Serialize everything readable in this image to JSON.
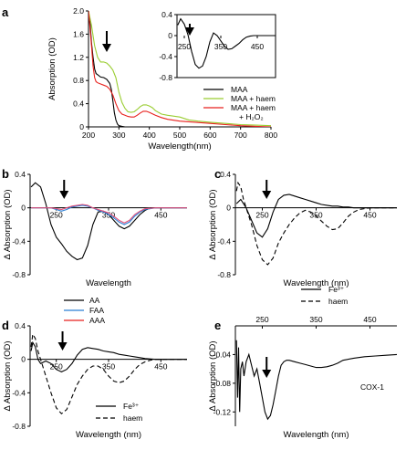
{
  "colors": {
    "black": "#000000",
    "green": "#9acd32",
    "red": "#e8211d",
    "blue": "#2a7fd4",
    "pink": "#e0507a"
  },
  "chart_data": [
    {
      "id": "a",
      "panel_label": "a",
      "type": "line",
      "xlabel": "Wavelength(nm)",
      "ylabel": "Absorption (OD)",
      "xlim": [
        200,
        800
      ],
      "ylim": [
        0,
        2.0
      ],
      "xticks": [
        "200",
        "300",
        "400",
        "500",
        "600",
        "700",
        "800"
      ],
      "yticks": [
        "0",
        "0.4",
        "0.8",
        "1.2",
        "1.6",
        "2.0"
      ],
      "arrow_x": 260,
      "legend": [
        "MAA",
        "MAA + haem",
        "MAA + haem",
        "+ H₂O₂"
      ],
      "series": [
        {
          "name": "MAA",
          "color": "#000000",
          "dash": false,
          "x": [
            200,
            205,
            210,
            215,
            220,
            225,
            230,
            240,
            250,
            260,
            270,
            275,
            280,
            285,
            290,
            295,
            300,
            310,
            320,
            400,
            800
          ],
          "y": [
            2.0,
            1.8,
            1.45,
            1.2,
            1.0,
            0.92,
            0.9,
            0.86,
            0.85,
            0.82,
            0.75,
            0.65,
            0.45,
            0.25,
            0.12,
            0.05,
            0.02,
            0.01,
            0.0,
            0.0,
            0.0
          ]
        },
        {
          "name": "MAA + haem",
          "color": "#9acd32",
          "dash": false,
          "x": [
            200,
            210,
            220,
            230,
            240,
            250,
            260,
            270,
            280,
            290,
            300,
            310,
            320,
            330,
            340,
            350,
            360,
            370,
            380,
            390,
            400,
            410,
            420,
            440,
            460,
            500,
            530,
            560,
            600,
            650,
            700,
            750,
            800
          ],
          "y": [
            2.0,
            1.75,
            1.4,
            1.2,
            1.12,
            1.12,
            1.1,
            1.05,
            0.98,
            0.85,
            0.6,
            0.42,
            0.32,
            0.26,
            0.25,
            0.26,
            0.3,
            0.35,
            0.38,
            0.38,
            0.36,
            0.33,
            0.28,
            0.22,
            0.2,
            0.17,
            0.12,
            0.1,
            0.08,
            0.06,
            0.04,
            0.03,
            0.02
          ]
        },
        {
          "name": "MAA + haem + H₂O₂",
          "color": "#e8211d",
          "dash": false,
          "x": [
            200,
            205,
            210,
            215,
            220,
            225,
            230,
            240,
            250,
            260,
            270,
            280,
            290,
            300,
            310,
            320,
            330,
            340,
            350,
            360,
            370,
            380,
            390,
            400,
            420,
            440,
            460,
            500,
            550,
            600,
            650,
            700,
            750,
            800
          ],
          "y": [
            2.0,
            1.7,
            1.4,
            1.05,
            0.85,
            0.78,
            0.76,
            0.74,
            0.72,
            0.7,
            0.65,
            0.55,
            0.4,
            0.28,
            0.22,
            0.2,
            0.18,
            0.17,
            0.17,
            0.2,
            0.24,
            0.27,
            0.27,
            0.25,
            0.2,
            0.16,
            0.13,
            0.1,
            0.08,
            0.06,
            0.04,
            0.02,
            0.01,
            0.0
          ]
        }
      ]
    },
    {
      "id": "a-inset",
      "type": "line",
      "xlim": [
        230,
        500
      ],
      "ylim": [
        -0.8,
        0.4
      ],
      "xticks": [
        "250",
        "350",
        "450"
      ],
      "yticks": [
        "0.4",
        "0",
        "-0.4",
        "-0.8"
      ],
      "arrow_x": 265,
      "series": [
        {
          "name": "",
          "color": "#000000",
          "dash": false,
          "x": [
            232,
            240,
            250,
            260,
            270,
            280,
            290,
            300,
            310,
            320,
            330,
            340,
            350,
            360,
            370,
            380,
            390,
            400,
            410,
            420,
            430,
            440,
            450,
            460,
            470,
            480,
            490,
            500
          ],
          "y": [
            0.2,
            0.32,
            0.22,
            0.02,
            -0.3,
            -0.55,
            -0.62,
            -0.58,
            -0.4,
            -0.12,
            0.05,
            0.0,
            -0.1,
            -0.2,
            -0.26,
            -0.25,
            -0.2,
            -0.15,
            -0.08,
            -0.03,
            -0.01,
            0.0,
            0.0,
            0.0,
            0.0,
            0.0,
            0.0,
            0.0
          ]
        }
      ]
    },
    {
      "id": "b",
      "panel_label": "b",
      "type": "line",
      "xlabel": "Wavelength",
      "ylabel": "Δ Absorption (OD)",
      "xlim": [
        200,
        500
      ],
      "ylim": [
        -0.8,
        0.4
      ],
      "xticks": [
        "250",
        "350",
        "450"
      ],
      "yticks": [
        "0.4",
        "0",
        "-0.4",
        "-0.8"
      ],
      "arrow_x": 265,
      "legend": [
        "AA",
        "FAA",
        "AAA"
      ],
      "series": [
        {
          "name": "AA",
          "color": "#000000",
          "dash": false,
          "x": [
            202,
            210,
            220,
            230,
            240,
            250,
            260,
            270,
            280,
            290,
            300,
            310,
            320,
            330,
            340,
            350,
            360,
            370,
            380,
            390,
            400,
            410,
            420,
            430,
            440,
            450,
            460,
            470,
            480,
            490,
            500
          ],
          "y": [
            0.25,
            0.3,
            0.25,
            0.05,
            -0.2,
            -0.35,
            -0.43,
            -0.52,
            -0.58,
            -0.62,
            -0.6,
            -0.45,
            -0.2,
            -0.05,
            -0.04,
            -0.08,
            -0.15,
            -0.22,
            -0.25,
            -0.22,
            -0.15,
            -0.08,
            -0.03,
            0.0,
            0.0,
            0.0,
            0.0,
            0.0,
            0.0,
            0.0,
            0.0
          ]
        },
        {
          "name": "FAA",
          "color": "#2a7fd4",
          "dash": false,
          "x": [
            202,
            220,
            240,
            250,
            260,
            270,
            280,
            290,
            300,
            310,
            320,
            330,
            340,
            350,
            360,
            370,
            380,
            390,
            400,
            410,
            420,
            440,
            460,
            480,
            500
          ],
          "y": [
            0.0,
            0.0,
            0.0,
            -0.02,
            -0.04,
            -0.02,
            0.01,
            0.02,
            0.03,
            0.02,
            0.0,
            -0.03,
            -0.05,
            -0.08,
            -0.12,
            -0.17,
            -0.2,
            -0.17,
            -0.1,
            -0.05,
            -0.02,
            0.0,
            0.0,
            0.0,
            0.0
          ]
        },
        {
          "name": "AAA",
          "color": "#e0507a",
          "dash": false,
          "x": [
            202,
            220,
            240,
            250,
            260,
            270,
            280,
            290,
            300,
            310,
            320,
            330,
            340,
            350,
            360,
            370,
            380,
            390,
            400,
            410,
            420,
            440,
            460,
            480,
            500
          ],
          "y": [
            0.0,
            0.0,
            0.0,
            -0.01,
            -0.02,
            0.0,
            0.02,
            0.03,
            0.04,
            0.03,
            0.0,
            -0.02,
            -0.04,
            -0.06,
            -0.1,
            -0.15,
            -0.18,
            -0.15,
            -0.08,
            -0.04,
            -0.01,
            0.0,
            0.0,
            0.0,
            0.0
          ]
        }
      ]
    },
    {
      "id": "c",
      "panel_label": "c",
      "type": "line",
      "xlabel": "Wavelength (nm)",
      "ylabel": "Δ Absorption (OD)",
      "xlim": [
        200,
        500
      ],
      "ylim": [
        -0.8,
        0.4
      ],
      "xticks": [
        "250",
        "350",
        "450"
      ],
      "yticks": [
        "0.4",
        "0",
        "-0.4",
        "-0.8"
      ],
      "arrow_x": 258,
      "legend": [
        "Fe³⁺",
        "haem"
      ],
      "series": [
        {
          "name": "Fe³⁺",
          "color": "#000000",
          "dash": false,
          "x": [
            202,
            210,
            220,
            230,
            240,
            250,
            260,
            270,
            280,
            290,
            300,
            310,
            320,
            330,
            340,
            350,
            360,
            370,
            380,
            390,
            400,
            410,
            420,
            430,
            440,
            450,
            460,
            470,
            480,
            490,
            500
          ],
          "y": [
            0.05,
            0.1,
            0.0,
            -0.15,
            -0.3,
            -0.35,
            -0.25,
            -0.05,
            0.1,
            0.15,
            0.16,
            0.14,
            0.12,
            0.1,
            0.08,
            0.06,
            0.04,
            0.03,
            0.02,
            0.02,
            0.01,
            0.01,
            0.0,
            0.0,
            0.0,
            0.0,
            0.0,
            0.0,
            0.0,
            0.0,
            0.0
          ]
        },
        {
          "name": "haem",
          "color": "#000000",
          "dash": true,
          "x": [
            202,
            205,
            210,
            215,
            220,
            230,
            240,
            250,
            260,
            270,
            280,
            290,
            300,
            310,
            320,
            330,
            340,
            350,
            360,
            370,
            380,
            390,
            400,
            410,
            420,
            430,
            440,
            450,
            460,
            470,
            480,
            490,
            500
          ],
          "y": [
            0.2,
            0.3,
            0.25,
            0.1,
            0.0,
            -0.2,
            -0.45,
            -0.62,
            -0.68,
            -0.6,
            -0.42,
            -0.3,
            -0.2,
            -0.12,
            -0.06,
            -0.03,
            -0.05,
            -0.1,
            -0.16,
            -0.22,
            -0.26,
            -0.25,
            -0.18,
            -0.1,
            -0.05,
            -0.02,
            -0.01,
            0.0,
            0.0,
            0.0,
            0.0,
            0.0,
            0.0
          ]
        }
      ]
    },
    {
      "id": "d",
      "panel_label": "d",
      "type": "line",
      "xlabel": "Wavelength (nm)",
      "ylabel": "Δ Absorption (OD)",
      "xlim": [
        200,
        500
      ],
      "ylim": [
        -0.8,
        0.4
      ],
      "xticks": [
        "250",
        "350",
        "450"
      ],
      "yticks": [
        "0.4",
        "0",
        "-0.4",
        "-0.8"
      ],
      "arrow_x": 262,
      "legend": [
        "Fe³⁺",
        "haem"
      ],
      "series": [
        {
          "name": "Fe³⁺",
          "color": "#000000",
          "dash": false,
          "x": [
            202,
            205,
            210,
            215,
            220,
            230,
            240,
            250,
            260,
            270,
            280,
            290,
            300,
            310,
            320,
            330,
            340,
            350,
            360,
            370,
            380,
            390,
            400,
            410,
            420,
            440,
            460,
            480,
            500
          ],
          "y": [
            0.1,
            0.2,
            0.15,
            0.0,
            -0.05,
            -0.02,
            -0.05,
            -0.12,
            -0.15,
            -0.12,
            -0.05,
            0.05,
            0.12,
            0.14,
            0.13,
            0.12,
            0.1,
            0.09,
            0.08,
            0.06,
            0.05,
            0.04,
            0.03,
            0.02,
            0.01,
            0.0,
            0.0,
            0.0,
            0.0
          ]
        },
        {
          "name": "haem",
          "color": "#000000",
          "dash": true,
          "x": [
            202,
            205,
            210,
            215,
            220,
            230,
            240,
            250,
            260,
            270,
            280,
            290,
            300,
            310,
            320,
            330,
            340,
            350,
            360,
            370,
            380,
            390,
            400,
            410,
            420,
            430,
            440,
            460,
            480,
            500
          ],
          "y": [
            0.15,
            0.3,
            0.25,
            0.1,
            0.0,
            -0.2,
            -0.4,
            -0.58,
            -0.65,
            -0.6,
            -0.45,
            -0.3,
            -0.2,
            -0.12,
            -0.08,
            -0.08,
            -0.12,
            -0.2,
            -0.26,
            -0.28,
            -0.26,
            -0.2,
            -0.12,
            -0.06,
            -0.03,
            -0.01,
            0.0,
            0.0,
            0.0,
            0.0
          ]
        }
      ]
    },
    {
      "id": "e",
      "panel_label": "e",
      "type": "line",
      "xlabel": "Wavelength (nm)",
      "ylabel": "Δ Absorption (OD)",
      "xlim": [
        200,
        500
      ],
      "ylim": [
        -0.14,
        0
      ],
      "xticks": [
        "250",
        "350",
        "450"
      ],
      "yticks": [
        "-0.04",
        "-0.08",
        "-0.12"
      ],
      "arrow_x": 258,
      "annotation": "COX-1",
      "series": [
        {
          "name": "",
          "color": "#000000",
          "dash": false,
          "x": [
            202,
            204,
            206,
            208,
            210,
            213,
            216,
            220,
            225,
            230,
            235,
            240,
            245,
            250,
            255,
            260,
            265,
            270,
            275,
            280,
            285,
            290,
            295,
            300,
            310,
            320,
            330,
            340,
            350,
            360,
            370,
            380,
            390,
            400,
            420,
            440,
            460,
            480,
            500
          ],
          "y": [
            -0.02,
            -0.1,
            -0.03,
            -0.12,
            -0.06,
            -0.05,
            -0.07,
            -0.05,
            -0.04,
            -0.055,
            -0.07,
            -0.06,
            -0.08,
            -0.1,
            -0.12,
            -0.13,
            -0.125,
            -0.11,
            -0.09,
            -0.07,
            -0.055,
            -0.05,
            -0.048,
            -0.048,
            -0.05,
            -0.052,
            -0.054,
            -0.056,
            -0.058,
            -0.058,
            -0.057,
            -0.055,
            -0.052,
            -0.048,
            -0.045,
            -0.043,
            -0.042,
            -0.041,
            -0.04
          ]
        }
      ]
    }
  ]
}
